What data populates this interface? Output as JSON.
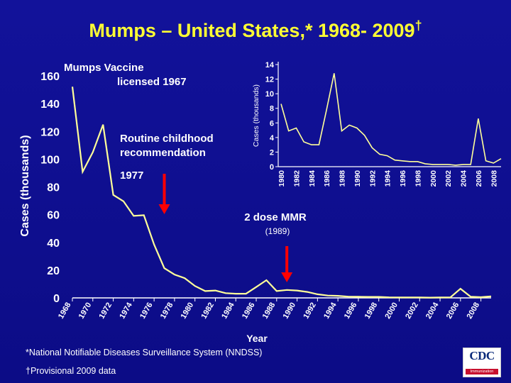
{
  "title": "Mumps – United States,* 1968- 2009",
  "title_mark": "†",
  "footnotes": [
    "*National Notifiable Diseases Surveillance System (NNDSS)",
    "†Provisional 2009 data"
  ],
  "logo": {
    "text": "CDC",
    "band": "Immunization"
  },
  "colors": {
    "background": "#12129a",
    "title": "#ffff33",
    "line": "#ffff99",
    "arrow": "#ff0000",
    "text": "#ffffff"
  },
  "chart_data": [
    {
      "type": "line",
      "ylabel": "Cases (thousands)",
      "xlabel": "Year",
      "ylim": [
        0,
        160
      ],
      "yticks": [
        0,
        20,
        40,
        60,
        80,
        100,
        120,
        140,
        160
      ],
      "xlim": [
        1968,
        2009
      ],
      "xticks": [
        "1968",
        "1970",
        "1972",
        "1974",
        "1976",
        "1978",
        "1980",
        "1982",
        "1984",
        "1986",
        "1988",
        "1990",
        "1992",
        "1994",
        "1996",
        "1998",
        "2000",
        "2002",
        "2004",
        "2006",
        "2008"
      ],
      "x": [
        1968,
        1969,
        1970,
        1971,
        1972,
        1973,
        1974,
        1975,
        1976,
        1977,
        1978,
        1979,
        1980,
        1981,
        1982,
        1983,
        1984,
        1985,
        1986,
        1987,
        1988,
        1989,
        1990,
        1991,
        1992,
        1993,
        1994,
        1995,
        1996,
        1997,
        1998,
        1999,
        2000,
        2001,
        2002,
        2003,
        2004,
        2005,
        2006,
        2007,
        2008,
        2009
      ],
      "y": [
        152.2,
        90.9,
        105.0,
        124.9,
        74.2,
        69.6,
        59.1,
        59.6,
        38.5,
        21.4,
        16.8,
        14.2,
        8.6,
        4.9,
        5.3,
        3.4,
        3.0,
        3.0,
        7.8,
        12.8,
        4.9,
        5.7,
        5.3,
        4.3,
        2.6,
        1.7,
        1.5,
        0.9,
        0.8,
        0.7,
        0.7,
        0.4,
        0.3,
        0.3,
        0.3,
        0.2,
        0.3,
        0.3,
        6.6,
        0.8,
        0.5,
        1.1
      ],
      "annotations": [
        {
          "text": "Mumps Vaccine",
          "year": 1967
        },
        {
          "text": "licensed 1967",
          "year": 1967
        },
        {
          "text": "Routine childhood",
          "year": 1977
        },
        {
          "text": "recommendation",
          "year": 1977
        },
        {
          "text": "1977",
          "year": 1977
        },
        {
          "text": "2 dose MMR",
          "year": 1989
        },
        {
          "text": "(1989)",
          "year": 1989
        }
      ],
      "arrows": [
        {
          "year": 1977
        },
        {
          "year": 1989
        }
      ]
    },
    {
      "type": "line",
      "ylabel": "Cases (thousands)",
      "ylim": [
        0,
        14
      ],
      "yticks": [
        0,
        2,
        4,
        6,
        8,
        10,
        12,
        14
      ],
      "xlim": [
        1980,
        2009
      ],
      "xticks": [
        "1980",
        "1982",
        "1984",
        "1986",
        "1988",
        "1990",
        "1992",
        "1994",
        "1996",
        "1998",
        "2000",
        "2002",
        "2004",
        "2006",
        "2008"
      ],
      "x": [
        1980,
        1981,
        1982,
        1983,
        1984,
        1985,
        1986,
        1987,
        1988,
        1989,
        1990,
        1991,
        1992,
        1993,
        1994,
        1995,
        1996,
        1997,
        1998,
        1999,
        2000,
        2001,
        2002,
        2003,
        2004,
        2005,
        2006,
        2007,
        2008,
        2009
      ],
      "y": [
        8.6,
        4.9,
        5.3,
        3.4,
        3.0,
        3.0,
        7.8,
        12.8,
        4.9,
        5.7,
        5.3,
        4.3,
        2.6,
        1.7,
        1.5,
        0.9,
        0.8,
        0.7,
        0.7,
        0.4,
        0.3,
        0.3,
        0.3,
        0.2,
        0.3,
        0.3,
        6.6,
        0.8,
        0.5,
        1.1
      ]
    }
  ]
}
